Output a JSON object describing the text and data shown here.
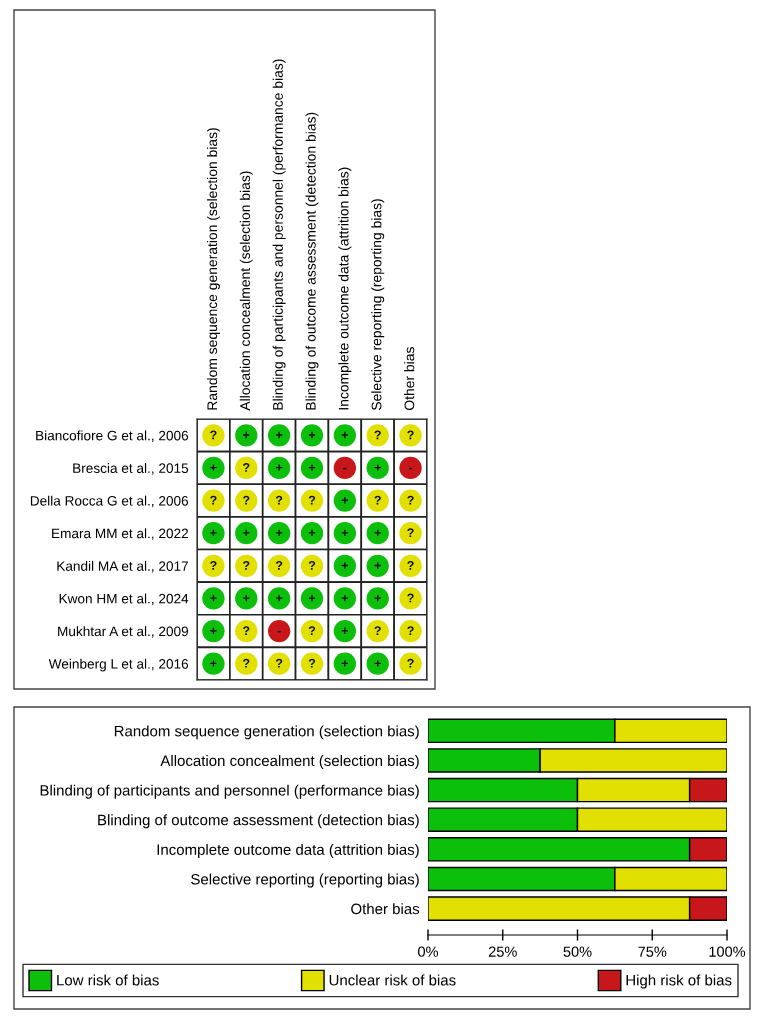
{
  "chart_data": [
    {
      "type": "heatmap",
      "categories": [
        "Random sequence generation (selection bias)",
        "Allocation concealment (selection bias)",
        "Blinding of participants and personnel (performance bias)",
        "Blinding of outcome assessment (detection bias)",
        "Incomplete outcome data (attrition bias)",
        "Selective reporting (reporting bias)",
        "Other bias"
      ],
      "y_categories": [
        "Biancofiore G et al., 2006",
        "Brescia et al., 2015",
        "Della Rocca G et al., 2006",
        "Emara MM et al., 2022",
        "Kandil MA et al., 2017",
        "Kwon HM et al., 2024",
        "Mukhtar A et al., 2009",
        "Weinberg L et al., 2016"
      ],
      "cells": [
        [
          "?",
          "+",
          "+",
          "+",
          "+",
          "?",
          "?"
        ],
        [
          "+",
          "?",
          "+",
          "+",
          "-",
          "+",
          "-"
        ],
        [
          "?",
          "?",
          "?",
          "?",
          "+",
          "?",
          "?"
        ],
        [
          "+",
          "+",
          "+",
          "+",
          "+",
          "+",
          "?"
        ],
        [
          "?",
          "?",
          "?",
          "?",
          "+",
          "+",
          "?"
        ],
        [
          "+",
          "+",
          "+",
          "+",
          "+",
          "+",
          "?"
        ],
        [
          "+",
          "?",
          "-",
          "?",
          "+",
          "?",
          "?"
        ],
        [
          "+",
          "?",
          "?",
          "?",
          "+",
          "+",
          "?"
        ]
      ],
      "colors": [
        [
          "#e1e000",
          "#0bbf0b",
          "#0bbf0b",
          "#0bbf0b",
          "#0bbf0b",
          "#e1e000",
          "#e1e000"
        ],
        [
          "#0bbf0b",
          "#e1e000",
          "#0bbf0b",
          "#0bbf0b",
          "#c8171a",
          "#0bbf0b",
          "#c8171a"
        ],
        [
          "#e1e000",
          "#e1e000",
          "#e1e000",
          "#e1e000",
          "#0bbf0b",
          "#e1e000",
          "#e1e000"
        ],
        [
          "#0bbf0b",
          "#0bbf0b",
          "#0bbf0b",
          "#0bbf0b",
          "#0bbf0b",
          "#0bbf0b",
          "#e1e000"
        ],
        [
          "#e1e000",
          "#e1e000",
          "#e1e000",
          "#e1e000",
          "#0bbf0b",
          "#0bbf0b",
          "#e1e000"
        ],
        [
          "#0bbf0b",
          "#0bbf0b",
          "#0bbf0b",
          "#0bbf0b",
          "#0bbf0b",
          "#0bbf0b",
          "#e1e000"
        ],
        [
          "#0bbf0b",
          "#e1e000",
          "#c8171a",
          "#e1e000",
          "#0bbf0b",
          "#e1e000",
          "#e1e000"
        ],
        [
          "#0bbf0b",
          "#e1e000",
          "#e1e000",
          "#e1e000",
          "#0bbf0b",
          "#0bbf0b",
          "#e1e000"
        ]
      ]
    },
    {
      "type": "bar",
      "orientation": "horizontal",
      "stacked": true,
      "categories": [
        "Random sequence generation (selection bias)",
        "Allocation concealment (selection bias)",
        "Blinding of participants and personnel (performance bias)",
        "Blinding of outcome assessment (detection bias)",
        "Incomplete outcome data (attrition bias)",
        "Selective reporting (reporting bias)",
        "Other bias"
      ],
      "series": [
        {
          "name": "Low risk of bias",
          "color": "#0bbf0b",
          "values": [
            62.5,
            37.5,
            50,
            50,
            87.5,
            62.5,
            0
          ]
        },
        {
          "name": "Unclear risk of bias",
          "color": "#e1e000",
          "values": [
            37.5,
            62.5,
            37.5,
            50,
            0,
            37.5,
            87.5
          ]
        },
        {
          "name": "High risk of bias",
          "color": "#c8171a",
          "values": [
            0,
            0,
            12.5,
            0,
            12.5,
            0,
            12.5
          ]
        }
      ],
      "xlim": [
        0,
        100
      ],
      "xticks": [
        {
          "value": 0,
          "label": "0%"
        },
        {
          "value": 25,
          "label": "25%"
        },
        {
          "value": 50,
          "label": "50%"
        },
        {
          "value": 75,
          "label": "75%"
        },
        {
          "value": 100,
          "label": "100%"
        }
      ],
      "legend": "bottom"
    }
  ]
}
